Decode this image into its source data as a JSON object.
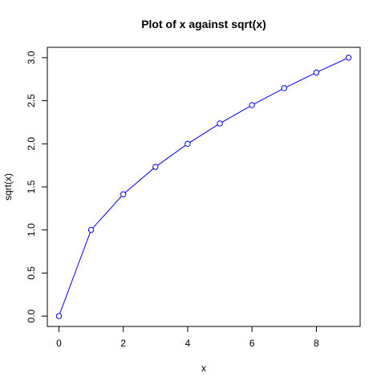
{
  "chart_data": {
    "type": "line",
    "title": "Plot of x against sqrt(x)",
    "xlabel": "x",
    "ylabel": "sqrt(x)",
    "x": [
      0,
      1,
      2,
      3,
      4,
      5,
      6,
      7,
      8,
      9
    ],
    "y": [
      0,
      1,
      1.414,
      1.732,
      2,
      2.236,
      2.449,
      2.646,
      2.828,
      3
    ],
    "xlim": [
      -0.36,
      9.36
    ],
    "ylim": [
      -0.12,
      3.12
    ],
    "x_ticks": [
      0,
      2,
      4,
      6,
      8
    ],
    "x_tick_labels": [
      "0",
      "2",
      "4",
      "6",
      "8"
    ],
    "y_ticks": [
      0,
      0.5,
      1,
      1.5,
      2,
      2.5,
      3
    ],
    "y_tick_labels": [
      "0.0",
      "0.5",
      "1.0",
      "1.5",
      "2.0",
      "2.5",
      "3.0"
    ],
    "grid": false,
    "markers": "open-circle",
    "colors": {
      "series": "#0000ff",
      "frame": "#000000"
    }
  }
}
